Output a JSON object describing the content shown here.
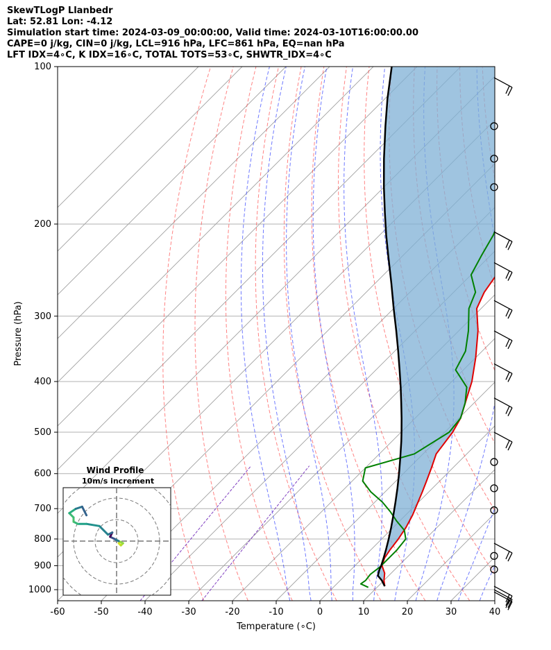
{
  "title_lines": [
    "SkewTLogP Llanbedr",
    "Lat: 52.81   Lon: -4.12",
    "Simulation start time: 2024-03-09_00:00:00, Valid time: 2024-03-10T16:00:00.00",
    "CAPE=0 j/kg, CIN=0 j/kg, LCL=916 hPa, LFC=861 hPa, EQ=nan hPa",
    "LFT IDX=4∘C, K IDX=16∘C, TOTAL TOTS=53∘C, SHWTR_IDX=4∘C"
  ],
  "colors": {
    "temperature": "#e00000",
    "dewpoint": "#008000",
    "parcel": "#000000",
    "cape_fill": "#7fb0d6",
    "dry_adiabat": "#ff4040",
    "moist_adiabat": "#3040ff",
    "mixing_ratio": "#8040c0",
    "isotherm": "#a0a0a0"
  },
  "chart_data": {
    "type": "line",
    "skew": "skew-T log-p",
    "xlabel": "Temperature (∘C)",
    "ylabel": "Pressure (hPa)",
    "xlim": [
      -60,
      40
    ],
    "ylim": [
      1050,
      100
    ],
    "y_scale": "log",
    "grid": true,
    "x_ticks": [
      -60,
      -50,
      -40,
      -30,
      -20,
      -10,
      0,
      10,
      20,
      30,
      40
    ],
    "y_ticks": [
      100,
      200,
      300,
      400,
      500,
      600,
      700,
      800,
      900,
      1000
    ],
    "series": [
      {
        "key": "temperature",
        "p": [
          985,
          960,
          930,
          900,
          870,
          840,
          800,
          760,
          720,
          690,
          650,
          620,
          585,
          550,
          500,
          470,
          430,
          400,
          360,
          320,
          290,
          270,
          250,
          230,
          210,
          195,
          180,
          165,
          150,
          140,
          130,
          120,
          110,
          100
        ],
        "t": [
          11.5,
          10,
          8.5,
          6.2,
          5,
          4.4,
          3.8,
          2.9,
          1.6,
          0.3,
          -1.5,
          -3,
          -4.9,
          -7,
          -8.2,
          -9.6,
          -12.8,
          -15.4,
          -20,
          -25.6,
          -31,
          -33,
          -34.2,
          -35.8,
          -38.2,
          -40,
          -42.6,
          -45,
          -47.3,
          -48.6,
          -51,
          -52.8,
          -54.2,
          -55
        ]
      },
      {
        "key": "dewpoint",
        "p": [
          990,
          975,
          960,
          935,
          905,
          870,
          840,
          800,
          770,
          740,
          710,
          680,
          650,
          620,
          585,
          550,
          500,
          470,
          440,
          410,
          380,
          350,
          320,
          290,
          270,
          250,
          230,
          210,
          190,
          170,
          150,
          130,
          115,
          100
        ],
        "t": [
          8,
          5.5,
          5.8,
          5.5,
          6,
          6,
          6,
          5.5,
          3.2,
          -0.6,
          -4.2,
          -8.3,
          -13.3,
          -17.6,
          -20,
          -12,
          -9,
          -9.6,
          -12,
          -15.3,
          -21.8,
          -23.8,
          -27.8,
          -32.8,
          -35,
          -40,
          -42,
          -44,
          -47,
          -46,
          -44,
          -43.8,
          -44,
          -44.8
        ]
      },
      {
        "key": "parcel",
        "p": [
          985,
          960,
          940,
          916,
          900,
          870,
          840,
          800,
          760,
          720,
          680,
          640,
          600,
          560,
          520,
          500,
          470,
          440,
          410,
          380,
          350,
          320,
          290,
          260,
          230,
          210,
          190,
          170,
          150,
          130,
          115,
          100
        ],
        "t": [
          11.5,
          9.5,
          7.5,
          6.5,
          6,
          4.8,
          3.5,
          1.6,
          -0.5,
          -2.8,
          -5.3,
          -8,
          -11,
          -14.3,
          -17.9,
          -19.9,
          -23.1,
          -26.6,
          -30.4,
          -34.6,
          -39.2,
          -44.3,
          -50,
          -56.2,
          -63.3,
          -68.5,
          -74,
          -80,
          -86.5,
          -93.6,
          -99.5,
          -105.8
        ]
      }
    ],
    "wind_barbs": {
      "p": [
        105,
        130,
        150,
        170,
        207,
        237,
        280,
        320,
        370,
        430,
        500,
        570,
        640,
        705,
        815,
        862,
        915,
        985,
        1000,
        1010
      ],
      "labels": [
        "barb",
        "calm",
        "calm",
        "calm",
        "barb",
        "barb",
        "barb",
        "barb",
        "barb",
        "barb",
        "barb",
        "calm",
        "calm",
        "calm",
        "barb",
        "calm",
        "calm",
        "barb",
        "barb",
        "barb"
      ]
    },
    "hodograph": {
      "title": "Wind Profile",
      "subtitle": "10m/s increment",
      "u": [
        1,
        2,
        3,
        1,
        -1,
        -3,
        -2,
        -4,
        -8,
        -14,
        -18,
        -20,
        -20,
        -22,
        -19,
        -16,
        -14
      ],
      "v": [
        -1,
        -2,
        -1,
        0,
        1,
        2,
        4,
        3,
        7,
        8,
        8,
        9,
        11,
        13,
        15,
        16,
        12
      ],
      "ring_step": 10
    }
  }
}
